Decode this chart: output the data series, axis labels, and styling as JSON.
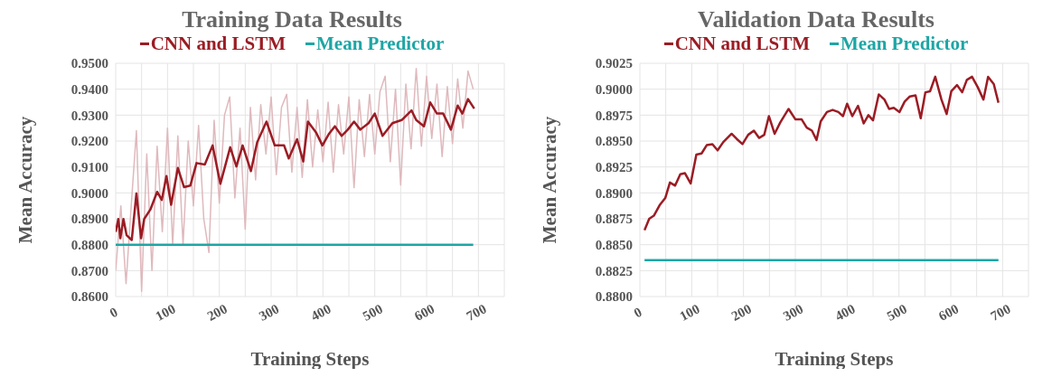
{
  "chart_data": [
    {
      "type": "line",
      "title": "Training Data Results",
      "xlabel": "Training Steps",
      "ylabel": "Mean Accuracy",
      "legend": "top",
      "grid": true,
      "xlim": [
        0,
        750
      ],
      "xticks": [
        0,
        {
          "value": 50,
          "label": null
        },
        100,
        {
          "value": 150,
          "label": null
        },
        200,
        {
          "value": 250,
          "label": null
        },
        300,
        {
          "value": 350,
          "label": null
        },
        400,
        {
          "value": 450,
          "label": null
        },
        500,
        {
          "value": 550,
          "label": null
        },
        600,
        {
          "value": 650,
          "label": null
        },
        700
      ],
      "ylim": [
        0.86,
        0.95
      ],
      "yticks": [
        {
          "value": 0.86,
          "label": "0.8600"
        },
        {
          "value": 0.87,
          "label": "0.8700"
        },
        {
          "value": 0.88,
          "label": "0.8800"
        },
        {
          "value": 0.89,
          "label": "0.8900"
        },
        {
          "value": 0.9,
          "label": "0.9000"
        },
        {
          "value": 0.91,
          "label": "0.9100"
        },
        {
          "value": 0.92,
          "label": "0.9200"
        },
        {
          "value": 0.93,
          "label": "0.9300"
        },
        {
          "value": 0.94,
          "label": "0.9400"
        },
        {
          "value": 0.95,
          "label": "0.9500"
        }
      ],
      "series": [
        {
          "color": "#dfb9bd",
          "x": [
            0,
            10,
            20,
            30,
            40,
            50,
            60,
            70,
            80,
            90,
            100,
            110,
            120,
            130,
            140,
            150,
            160,
            170,
            180,
            190,
            200,
            210,
            220,
            230,
            240,
            250,
            260,
            270,
            280,
            290,
            300,
            310,
            320,
            330,
            340,
            350,
            360,
            370,
            380,
            390,
            400,
            410,
            420,
            430,
            440,
            450,
            460,
            470,
            480,
            490,
            500,
            510,
            520,
            530,
            540,
            550,
            560,
            570,
            580,
            590,
            600,
            610,
            620,
            630,
            640,
            650,
            660,
            670,
            680,
            690
          ],
          "values": [
            0.87,
            0.895,
            0.865,
            0.895,
            0.924,
            0.862,
            0.915,
            0.87,
            0.918,
            0.885,
            0.925,
            0.88,
            0.922,
            0.88,
            0.92,
            0.895,
            0.926,
            0.89,
            0.877,
            0.928,
            0.896,
            0.93,
            0.937,
            0.898,
            0.925,
            0.886,
            0.933,
            0.905,
            0.934,
            0.915,
            0.937,
            0.907,
            0.933,
            0.938,
            0.908,
            0.933,
            0.906,
            0.936,
            0.91,
            0.932,
            0.912,
            0.935,
            0.908,
            0.934,
            0.915,
            0.937,
            0.902,
            0.936,
            0.914,
            0.938,
            0.915,
            0.939,
            0.945,
            0.912,
            0.94,
            0.903,
            0.942,
            0.917,
            0.948,
            0.918,
            0.945,
            0.921,
            0.942,
            0.914,
            0.941,
            0.919,
            0.944,
            0.925,
            0.947,
            0.94
          ]
        },
        {
          "name": "CNN and LSTM",
          "color": "#9b1c24",
          "x": [
            0,
            5,
            9,
            15,
            21,
            31,
            40,
            49,
            55,
            67,
            80,
            89,
            98,
            107,
            120,
            132,
            144,
            156,
            172,
            187,
            202,
            221,
            233,
            245,
            261,
            273,
            291,
            307,
            325,
            334,
            350,
            362,
            371,
            387,
            399,
            411,
            423,
            436,
            448,
            460,
            472,
            488,
            500,
            515,
            534,
            552,
            571,
            580,
            595,
            607,
            620,
            632,
            647,
            660,
            669,
            680,
            692
          ],
          "values": [
            0.8849,
            0.8899,
            0.8825,
            0.8899,
            0.8837,
            0.8818,
            0.8998,
            0.8825,
            0.8899,
            0.8936,
            0.9004,
            0.8973,
            0.9065,
            0.8954,
            0.9096,
            0.9022,
            0.9028,
            0.9115,
            0.9109,
            0.9183,
            0.9035,
            0.9176,
            0.9102,
            0.9183,
            0.9084,
            0.9195,
            0.9275,
            0.9183,
            0.9183,
            0.9133,
            0.9207,
            0.9121,
            0.9275,
            0.9232,
            0.9183,
            0.9226,
            0.9257,
            0.922,
            0.9244,
            0.9275,
            0.9244,
            0.9269,
            0.9306,
            0.922,
            0.9269,
            0.9281,
            0.9318,
            0.9281,
            0.9257,
            0.9349,
            0.9306,
            0.9306,
            0.9244,
            0.9337,
            0.9306,
            0.9362,
            0.9325
          ]
        },
        {
          "name": "Mean Predictor",
          "color": "#1fa5a5",
          "x": [
            0,
            690
          ],
          "values": [
            0.88,
            0.88
          ]
        }
      ]
    },
    {
      "type": "line",
      "title": "Validation Data Results",
      "xlabel": "Training Steps",
      "ylabel": "Mean Accuracy",
      "legend": "top",
      "grid": true,
      "xlim": [
        0,
        750
      ],
      "xticks": [
        0,
        {
          "value": 50,
          "label": null
        },
        100,
        {
          "value": 150,
          "label": null
        },
        200,
        {
          "value": 250,
          "label": null
        },
        300,
        {
          "value": 350,
          "label": null
        },
        400,
        {
          "value": 450,
          "label": null
        },
        500,
        {
          "value": 550,
          "label": null
        },
        600,
        {
          "value": 650,
          "label": null
        },
        700
      ],
      "ylim": [
        0.88,
        0.9025
      ],
      "yticks": [
        {
          "value": 0.88,
          "label": "0.8800"
        },
        {
          "value": 0.8825,
          "label": "0.8825"
        },
        {
          "value": 0.885,
          "label": "0.8850"
        },
        {
          "value": 0.8875,
          "label": "0.8875"
        },
        {
          "value": 0.89,
          "label": "0.8900"
        },
        {
          "value": 0.8925,
          "label": "0.8925"
        },
        {
          "value": 0.895,
          "label": "0.8950"
        },
        {
          "value": 0.8975,
          "label": "0.8975"
        },
        {
          "value": 0.9,
          "label": "0.9000"
        },
        {
          "value": 0.9025,
          "label": "0.9025"
        }
      ],
      "series": [
        {
          "name": "CNN and LSTM",
          "color": "#9b1c24",
          "x": [
            9,
            18,
            27,
            38,
            49,
            58,
            68,
            78,
            87,
            98,
            109,
            119,
            129,
            140,
            150,
            161,
            177,
            187,
            198,
            209,
            220,
            230,
            240,
            249,
            260,
            271,
            287,
            300,
            312,
            322,
            332,
            341,
            349,
            361,
            372,
            383,
            392,
            400,
            410,
            421,
            432,
            441,
            450,
            461,
            472,
            481,
            490,
            501,
            511,
            521,
            532,
            542,
            551,
            560,
            570,
            582,
            592,
            601,
            612,
            622,
            631,
            641,
            652,
            663,
            672,
            683,
            692
          ],
          "values": [
            0.8864,
            0.8875,
            0.8878,
            0.8888,
            0.8895,
            0.891,
            0.8907,
            0.8918,
            0.8919,
            0.8909,
            0.8937,
            0.8938,
            0.8946,
            0.8947,
            0.8941,
            0.8949,
            0.8957,
            0.8952,
            0.8947,
            0.8956,
            0.896,
            0.8953,
            0.8956,
            0.8974,
            0.8957,
            0.8968,
            0.8981,
            0.8971,
            0.8971,
            0.8963,
            0.896,
            0.8951,
            0.8969,
            0.8978,
            0.898,
            0.8978,
            0.8974,
            0.8986,
            0.8974,
            0.8984,
            0.8967,
            0.8975,
            0.897,
            0.8995,
            0.899,
            0.8981,
            0.8982,
            0.8978,
            0.8988,
            0.8993,
            0.8994,
            0.8972,
            0.8997,
            0.8998,
            0.9012,
            0.899,
            0.8976,
            0.8998,
            0.9004,
            0.8997,
            0.9009,
            0.9012,
            0.9002,
            0.899,
            0.9012,
            0.9005,
            0.8987
          ]
        },
        {
          "name": "Mean Predictor",
          "color": "#1fa5a5",
          "x": [
            9,
            692
          ],
          "values": [
            0.8835,
            0.8835
          ]
        }
      ]
    }
  ]
}
